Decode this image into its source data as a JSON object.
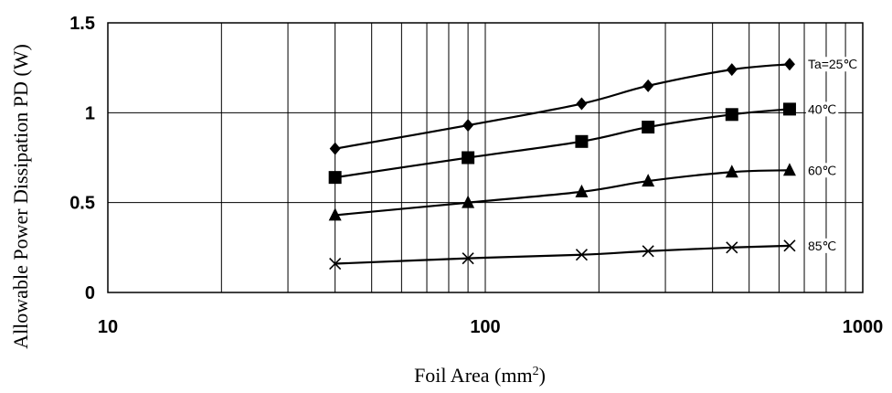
{
  "chart_data": {
    "type": "line",
    "title": "",
    "xlabel": "Foil Area (mm",
    "xlabel_sup": "2",
    "xlabel_suffix": ")",
    "ylabel": "Allowable Power Dissipation PD (W)",
    "x_scale": "log",
    "xlim": [
      10,
      1000
    ],
    "ylim": [
      0,
      1.5
    ],
    "grid": true,
    "x_ticks": [
      "10",
      "100",
      "1000"
    ],
    "y_ticks": [
      "0",
      "0.5",
      "1",
      "1.5"
    ],
    "x": [
      40,
      90,
      180,
      270,
      450,
      640
    ],
    "series": [
      {
        "name": "Ta=25℃",
        "marker": "diamond",
        "values": [
          0.8,
          0.93,
          1.05,
          1.15,
          1.24,
          1.27
        ]
      },
      {
        "name": "40℃",
        "marker": "square",
        "values": [
          0.64,
          0.75,
          0.84,
          0.92,
          0.99,
          1.02
        ]
      },
      {
        "name": "60℃",
        "marker": "triangle",
        "values": [
          0.43,
          0.5,
          0.56,
          0.62,
          0.67,
          0.68
        ]
      },
      {
        "name": "85℃",
        "marker": "cross",
        "values": [
          0.16,
          0.19,
          0.21,
          0.23,
          0.25,
          0.26
        ]
      }
    ]
  }
}
